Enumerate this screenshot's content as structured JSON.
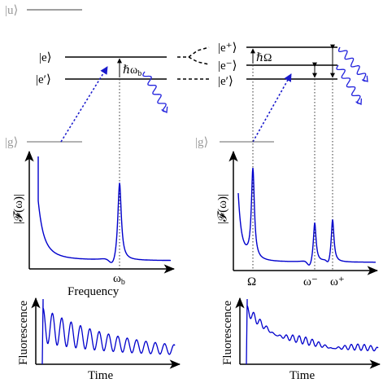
{
  "left": {
    "states": {
      "u": "|u⟩",
      "e": "|e⟩",
      "e_prime": "|e′⟩",
      "g": "|g⟩"
    },
    "splitting_label": "ℏω",
    "splitting_sub": "b",
    "spectrum": {
      "ylabel": "|𝓕(ω)|",
      "xlabel": "Frequency",
      "peak_label": "ω",
      "peak_sub": "b"
    },
    "trace": {
      "ylabel": "Fluorescence",
      "xlabel": "Time"
    }
  },
  "right": {
    "states": {
      "e_plus": "|e⁺⟩",
      "e_minus": "|e⁻⟩",
      "e_prime": "|e′⟩",
      "g": "|g⟩"
    },
    "splitting_label": "ℏΩ",
    "spectrum": {
      "ylabel": "|𝓕(ω)|",
      "xlabel": "",
      "peak_labels": [
        "Ω",
        "ω⁻",
        "ω⁺"
      ]
    },
    "trace": {
      "ylabel": "Fluorescence",
      "xlabel": "Time"
    }
  },
  "colors": {
    "curve": "#0000cc",
    "level": "#000000",
    "ground": "#9a9a9a",
    "excite": "#1a1acc",
    "emit": "#2222dd"
  }
}
